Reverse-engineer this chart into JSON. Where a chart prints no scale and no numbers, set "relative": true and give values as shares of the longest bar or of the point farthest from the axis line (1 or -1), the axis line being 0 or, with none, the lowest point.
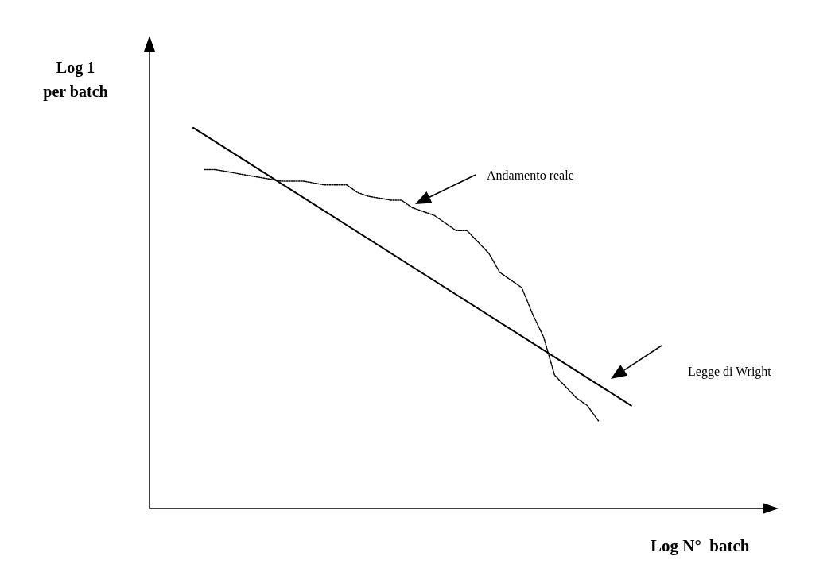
{
  "chart_data": {
    "type": "line",
    "relative": true,
    "xlabel": "Log N°  batch",
    "ylabel": "Log 1\nper batch",
    "marker": "none",
    "grid": false,
    "categories": [
      null,
      null,
      null,
      null,
      null,
      null,
      null,
      null,
      null,
      null,
      null,
      null,
      null,
      null,
      null,
      null,
      null,
      null,
      null,
      null,
      null,
      null,
      null,
      null,
      null,
      null,
      null,
      null,
      null,
      null,
      null,
      null,
      null,
      null,
      null,
      null,
      null,
      null,
      null,
      null,
      null,
      null,
      null,
      null,
      null,
      null,
      null,
      null,
      null,
      null,
      null,
      null,
      null,
      null,
      null,
      null,
      null
    ],
    "series": [
      {
        "color": "#000000",
        "line_style": "solid",
        "values": [
          null,
          null,
          null,
          null,
          1.0,
          null,
          null,
          null,
          null,
          null,
          null,
          null,
          null,
          null,
          null,
          null,
          null,
          null,
          null,
          null,
          null,
          null,
          null,
          null,
          null,
          null,
          null,
          null,
          null,
          null,
          null,
          null,
          null,
          null,
          null,
          null,
          null,
          null,
          null,
          null,
          null,
          null,
          null,
          null,
          0.27,
          null,
          null,
          null,
          null,
          null,
          null,
          null,
          null,
          null,
          null,
          null,
          null
        ]
      },
      {
        "color": "#000000",
        "line_style": "dotted",
        "values": [
          null,
          null,
          null,
          null,
          null,
          0.89,
          0.89,
          null,
          0.88,
          null,
          0.87,
          null,
          0.86,
          null,
          0.86,
          null,
          0.85,
          null,
          0.85,
          0.83,
          0.82,
          null,
          0.81,
          0.81,
          0.79,
          null,
          0.77,
          null,
          0.73,
          0.73,
          0.7,
          0.67,
          0.62,
          0.6,
          0.58,
          0.51,
          0.45,
          0.35,
          0.32,
          0.29,
          0.27,
          0.23,
          null,
          null,
          null,
          null,
          null,
          null,
          null,
          null,
          null,
          null,
          null,
          null,
          null,
          null,
          null
        ]
      }
    ],
    "annotations": [
      "Andamento reale",
      "Legge di Wright"
    ]
  }
}
